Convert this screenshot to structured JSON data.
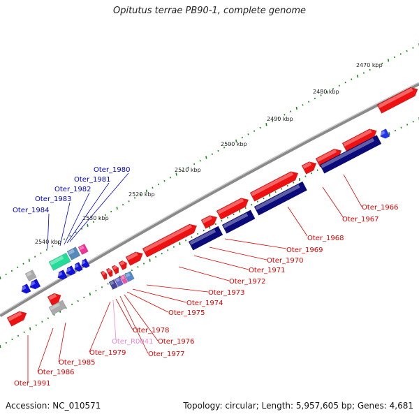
{
  "title": "Opitutus terrae PB90-1, complete genome",
  "accession": "Accession: NC_010571",
  "summary": "Topology: circular; Length: 5,957,605 bp; Genes: 4,681",
  "colors": {
    "forward_gene": "#ee1111",
    "reverse_gene": "#0a0a7a",
    "forward_label": "#dd0000",
    "reverse_label": "#0000cc",
    "rna_label": "#ee88cc",
    "tick": "#1a8a1a",
    "backbone": "#888888"
  },
  "scale_labels": [
    "2470 kbp",
    "2480 kbp",
    "2490 kbp",
    "2500 kbp",
    "2510 kbp",
    "2520 kbp",
    "2530 kbp",
    "2540 kbp"
  ],
  "forward_strand_labels": [
    "Oter_1966",
    "Oter_1967",
    "Oter_1968",
    "Oter_1969",
    "Oter_1970",
    "Oter_1971",
    "Oter_1972",
    "Oter_1973",
    "Oter_1974",
    "Oter_1975",
    "Oter_1978",
    "Oter_1976",
    "Oter_R0041",
    "Oter_1977",
    "Oter_1979",
    "Oter_1985",
    "Oter_1986",
    "Oter_1991"
  ],
  "reverse_strand_labels": [
    "Oter_1980",
    "Oter_1981",
    "Oter_1982",
    "Oter_1983",
    "Oter_1984"
  ]
}
